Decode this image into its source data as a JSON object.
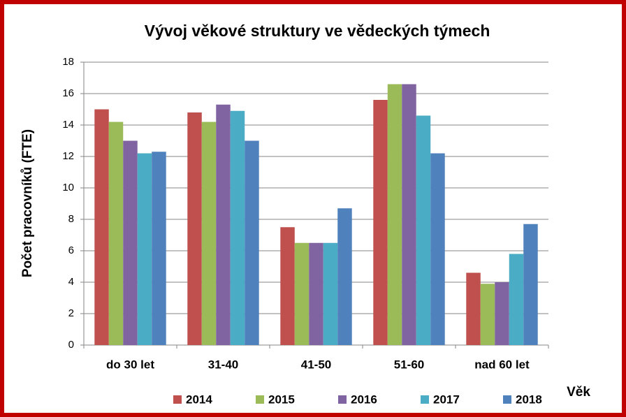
{
  "chart_data": {
    "type": "bar",
    "title": "Vývoj věkové struktury ve vědeckých týmech",
    "y_label": "Počet pracovníků (FTE)",
    "x_label": "Věk",
    "categories": [
      "do 30 let",
      "31-40",
      "41-50",
      "51-60",
      "nad 60 let"
    ],
    "series": [
      {
        "name": "2014",
        "color": "#c0504d",
        "values": [
          15.0,
          14.8,
          7.5,
          15.6,
          4.6
        ]
      },
      {
        "name": "2015",
        "color": "#9bbb59",
        "values": [
          14.2,
          14.2,
          6.5,
          16.6,
          3.9
        ]
      },
      {
        "name": "2016",
        "color": "#8064a2",
        "values": [
          13.0,
          15.3,
          6.5,
          16.6,
          4.0
        ]
      },
      {
        "name": "2017",
        "color": "#4bacc6",
        "values": [
          12.2,
          14.9,
          6.5,
          14.6,
          5.8
        ]
      },
      {
        "name": "2018",
        "color": "#4f81bd",
        "values": [
          12.3,
          13.0,
          8.7,
          12.2,
          7.7
        ]
      }
    ],
    "ylim": [
      0,
      18
    ],
    "yticks": [
      0,
      2,
      4,
      6,
      8,
      10,
      12,
      14,
      16,
      18
    ],
    "grid": true,
    "legend": "bottom"
  }
}
